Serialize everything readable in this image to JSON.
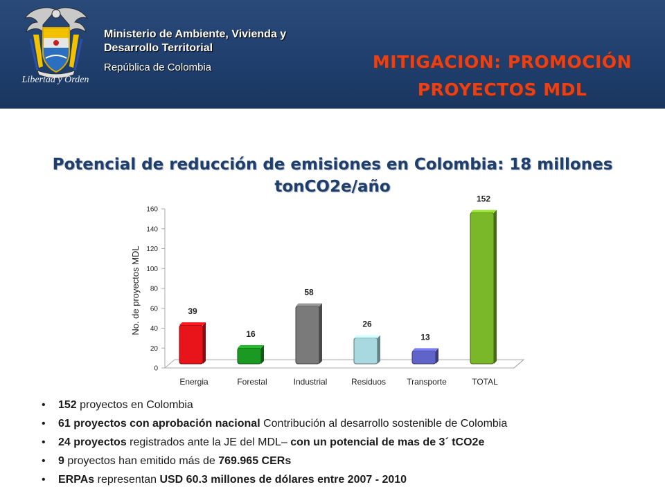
{
  "header": {
    "ministry_line1": "Ministerio de Ambiente, Vivienda y",
    "ministry_line2": "Desarrollo Territorial",
    "republic": "República de Colombia",
    "motto": "Libertad y Orden",
    "title_line1": "MITIGACION: PROMOCIÓN",
    "title_line2": "PROYECTOS MDL",
    "background_color": "#1f3e6c",
    "title_color": "#e8411a"
  },
  "subtitle_line1": "Potencial de reducción de emisiones en Colombia: 18 millones",
  "subtitle_line2": "tonCO2e/año",
  "chart_data": {
    "type": "bar",
    "categories": [
      "Energia",
      "Forestal",
      "Industrial",
      "Residuos",
      "Transporte",
      "TOTAL"
    ],
    "values": [
      39,
      16,
      58,
      26,
      13,
      152
    ],
    "colors": [
      "#e8141a",
      "#1a9a22",
      "#7a7a7a",
      "#a8d8e0",
      "#6064c8",
      "#7ab82a"
    ],
    "ylabel": "No. de proyectos MDL",
    "ylim": [
      0,
      160
    ],
    "yticks": [
      "0",
      "20",
      "40",
      "60",
      "80",
      "100",
      "120",
      "140",
      "160"
    ],
    "data_labels": [
      "39",
      "16",
      "58",
      "26",
      "13",
      "152"
    ],
    "grid": false,
    "legend": "none"
  },
  "bullets": [
    {
      "bold": "152",
      "text": " proyectos en Colombia"
    },
    {
      "bold": "61 proyectos con aprobación nacional",
      "text": " Contribución al desarrollo sostenible de  Colombia"
    },
    {
      "bold": "24 proyectos",
      "text": " registrados ante la JE del MDL– ",
      "bold2": "con un potencial de mas de 3´ tCO2e"
    },
    {
      "bold": "9",
      "text": " proyectos han emitido más de ",
      "bold2": "769.965 CERs"
    },
    {
      "bold": "ERPAs",
      "text": " representan ",
      "bold2": "USD 60.3 millones de dólares entre 2007 - 2010"
    }
  ]
}
